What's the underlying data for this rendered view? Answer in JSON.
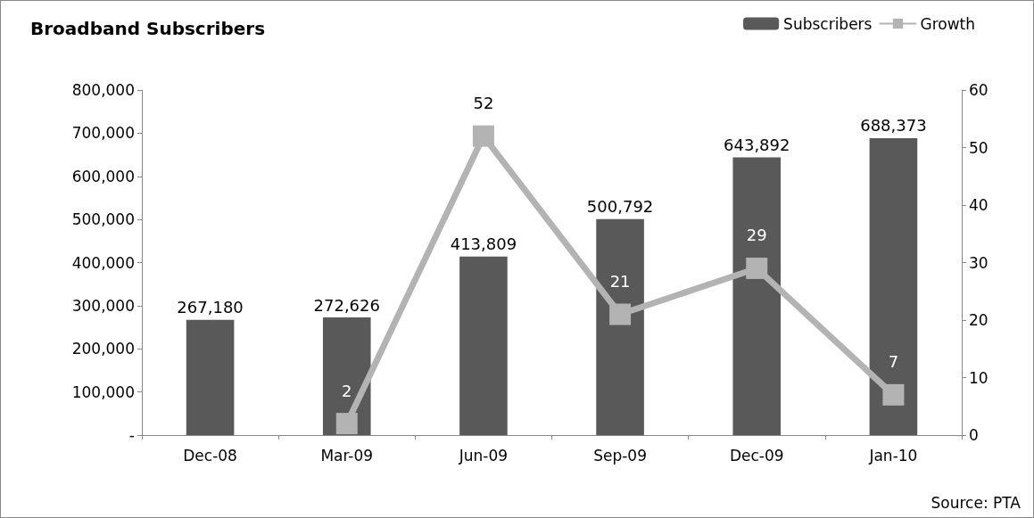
{
  "chart_data": {
    "type": "bar",
    "title": "Broadband Subscribers",
    "categories": [
      "Dec-08",
      "Mar-09",
      "Jun-09",
      "Sep-09",
      "Dec-09",
      "Jan-10"
    ],
    "series": [
      {
        "name": "Subscribers",
        "color": "#595959",
        "values": [
          267180,
          272626,
          413809,
          500792,
          643892,
          688373
        ],
        "value_labels": [
          "267,180",
          "272,626",
          "413,809",
          "500,792",
          "643,892",
          "688,373"
        ]
      },
      {
        "name": "Growth",
        "type": "line",
        "axis": "y2",
        "color": "#b3b3b3",
        "marker": "square",
        "values": [
          null,
          2,
          52,
          21,
          29,
          7
        ]
      }
    ],
    "ylim": [
      0,
      800000
    ],
    "yticks": [
      {
        "value": 0,
        "label": "-"
      },
      {
        "value": 100000,
        "label": "100,000"
      },
      {
        "value": 200000,
        "label": "200,000"
      },
      {
        "value": 300000,
        "label": "300,000"
      },
      {
        "value": 400000,
        "label": "400,000"
      },
      {
        "value": 500000,
        "label": "500,000"
      },
      {
        "value": 600000,
        "label": "600,000"
      },
      {
        "value": 700000,
        "label": "700,000"
      },
      {
        "value": 800000,
        "label": "800,000"
      }
    ],
    "y2lim": [
      0,
      60
    ],
    "y2ticks": [
      0,
      10,
      20,
      30,
      40,
      50,
      60
    ],
    "data_labels": true,
    "grid": false,
    "legend": "top right",
    "annotations": [
      "Source: PTA"
    ]
  }
}
